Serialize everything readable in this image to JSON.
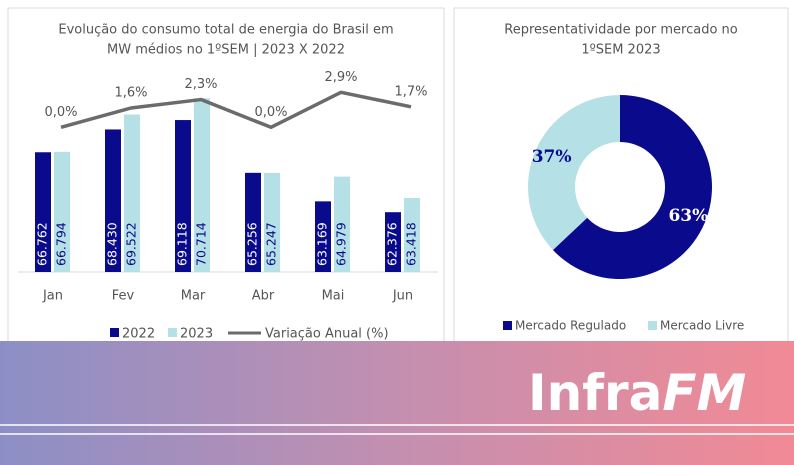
{
  "chart_data": [
    {
      "type": "bar",
      "title": [
        "Evolução do consumo total de energia do Brasil em",
        "MW médios no 1ºSEM | 2023 X 2022"
      ],
      "categories": [
        "Jan",
        "Fev",
        "Mar",
        "Abr",
        "Mai",
        "Jun"
      ],
      "series": [
        {
          "name": "2022",
          "type": "bar",
          "color": "#0a0a8c",
          "values": [
            66762,
            68430,
            69118,
            65256,
            63169,
            62376
          ],
          "value_labels": [
            "66.762",
            "68.430",
            "69.118",
            "65.256",
            "63.169",
            "62.376"
          ]
        },
        {
          "name": "2023",
          "type": "bar",
          "color": "#b5e0e5",
          "values": [
            66794,
            69522,
            70714,
            65247,
            64979,
            63418
          ],
          "value_labels": [
            "66.794",
            "69.522",
            "70.714",
            "65.247",
            "64.979",
            "63.418"
          ]
        },
        {
          "name": "Variação Anual (%)",
          "type": "line",
          "axis": "y2",
          "color": "#6b6b6b",
          "values": [
            0.0,
            1.6,
            2.3,
            0.0,
            2.9,
            1.7
          ],
          "value_labels": [
            "0,0%",
            "1,6%",
            "2,3%",
            "0,0%",
            "2,9%",
            "1,7%"
          ]
        }
      ],
      "ylim": [
        58000,
        73000
      ],
      "y2lim": [
        -12,
        5
      ]
    },
    {
      "type": "pie",
      "title": [
        "Representatividade por mercado no",
        "1ºSEM 2023"
      ],
      "categories": [
        "Mercado Regulado",
        "Mercado Livre"
      ],
      "values": [
        63,
        37
      ],
      "value_labels": [
        "63%",
        "37%"
      ],
      "colors": [
        "#0a0a8c",
        "#b5e0e5"
      ],
      "label_colors": [
        "#ffffff",
        "#0a0a8c"
      ],
      "donut": true
    }
  ],
  "banner": {
    "logo": [
      "Infra",
      "FM"
    ]
  }
}
